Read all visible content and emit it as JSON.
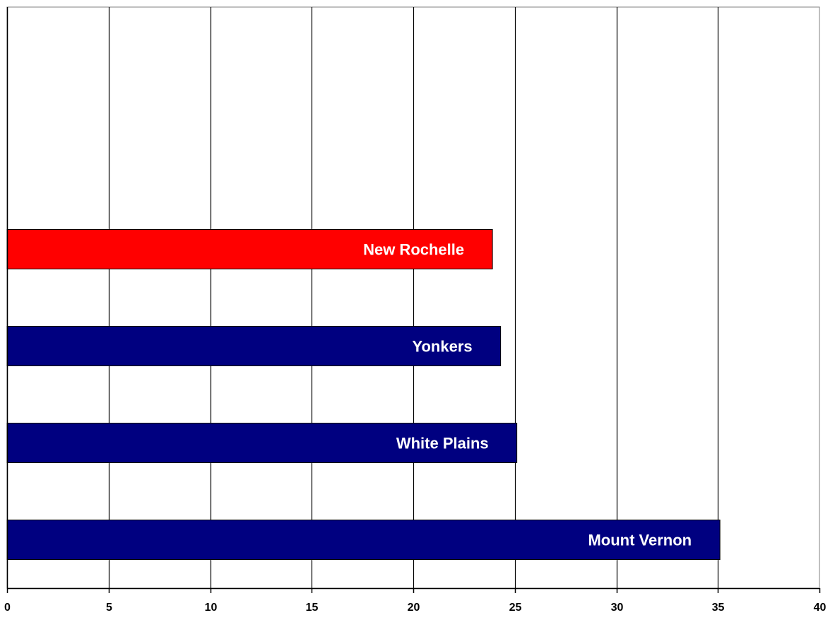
{
  "chart_data": {
    "type": "bar",
    "orientation": "horizontal",
    "title": "",
    "xlabel": "",
    "ylabel": "",
    "xlim": [
      0,
      40
    ],
    "x_ticks": [
      0,
      5,
      10,
      15,
      20,
      25,
      30,
      35,
      40
    ],
    "grid": "vertical",
    "legend": "none",
    "categories": [
      "Mount Vernon",
      "White Plains",
      "Yonkers",
      "New Rochelle"
    ],
    "values": [
      35.1,
      25.1,
      24.3,
      23.9
    ],
    "colors": [
      "#000080",
      "#000080",
      "#000080",
      "#ff0000"
    ],
    "category_slots": 6
  }
}
